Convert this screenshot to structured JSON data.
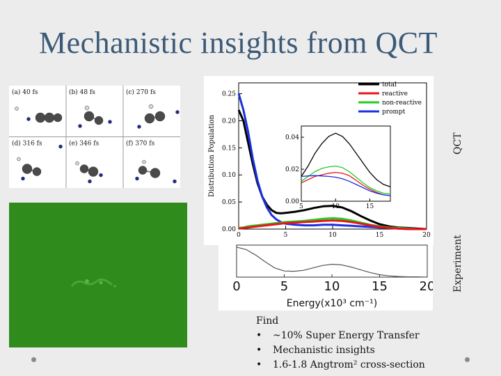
{
  "slide": {
    "title": "Mechanistic insights from QCT",
    "label_qct": "QCT",
    "label_experiment": "Experiment"
  },
  "snapshots": [
    {
      "label": "(a)",
      "time": "40 fs"
    },
    {
      "label": "(b)",
      "time": "48 fs"
    },
    {
      "label": "(c)",
      "time": "270 fs"
    },
    {
      "label": "(d)",
      "time": "316 fs"
    },
    {
      "label": "(e)",
      "time": "346 fs"
    },
    {
      "label": "(f)",
      "time": "370 fs"
    }
  ],
  "findings": {
    "heading": "Find",
    "items": [
      "~10% Super Energy Transfer",
      "Mechanistic insights",
      "1.6-1.8 Angtrom² cross-section"
    ]
  },
  "chart_data": [
    {
      "type": "line",
      "name": "qct-distribution",
      "ylabel": "Distribution Population",
      "xlim": [
        0,
        20
      ],
      "ylim": [
        0,
        0.27
      ],
      "xticks": [
        "0",
        "5",
        "10",
        "15",
        "20"
      ],
      "yticks": [
        "0.00",
        "0.05",
        "0.10",
        "0.15",
        "0.20",
        "0.25"
      ],
      "legend": [
        "total",
        "reactive",
        "non-reactive",
        "prompt"
      ],
      "colors": {
        "total": "#000000",
        "reactive": "#e8141c",
        "non-reactive": "#22cc22",
        "prompt": "#1a2ee0"
      },
      "x": [
        0,
        0.5,
        1,
        1.5,
        2,
        2.5,
        3,
        3.5,
        4,
        4.5,
        5,
        6,
        7,
        8,
        9,
        10,
        11,
        12,
        13,
        14,
        15,
        16,
        17,
        18,
        19,
        20
      ],
      "series": [
        {
          "name": "total",
          "values": [
            0.22,
            0.2,
            0.16,
            0.12,
            0.085,
            0.06,
            0.045,
            0.035,
            0.03,
            0.029,
            0.03,
            0.032,
            0.035,
            0.039,
            0.042,
            0.043,
            0.04,
            0.033,
            0.024,
            0.016,
            0.009,
            0.005,
            0.003,
            0.002,
            0.001,
            0.0
          ]
        },
        {
          "name": "prompt",
          "values": [
            0.25,
            0.22,
            0.18,
            0.13,
            0.09,
            0.06,
            0.04,
            0.026,
            0.018,
            0.013,
            0.01,
            0.008,
            0.007,
            0.007,
            0.008,
            0.008,
            0.007,
            0.006,
            0.005,
            0.004,
            0.003,
            0.002,
            0.001,
            0.001,
            0.0,
            0.0
          ]
        },
        {
          "name": "non-reactive",
          "values": [
            0.002,
            0.003,
            0.005,
            0.006,
            0.007,
            0.008,
            0.009,
            0.01,
            0.011,
            0.012,
            0.013,
            0.014,
            0.015,
            0.017,
            0.019,
            0.02,
            0.019,
            0.016,
            0.012,
            0.008,
            0.005,
            0.003,
            0.002,
            0.001,
            0.0,
            0.0
          ]
        },
        {
          "name": "reactive",
          "values": [
            0.001,
            0.002,
            0.003,
            0.004,
            0.005,
            0.006,
            0.007,
            0.008,
            0.009,
            0.01,
            0.011,
            0.012,
            0.013,
            0.014,
            0.015,
            0.016,
            0.015,
            0.013,
            0.01,
            0.007,
            0.004,
            0.002,
            0.001,
            0.0,
            0.0,
            0.0
          ]
        }
      ]
    },
    {
      "type": "line",
      "name": "qct-inset",
      "xlim": [
        5,
        18
      ],
      "ylim": [
        0,
        0.047
      ],
      "xticks": [
        "5",
        "10",
        "15"
      ],
      "yticks": [
        "0.00",
        "0.02",
        "0.04"
      ],
      "x": [
        5,
        6,
        7,
        8,
        9,
        10,
        11,
        12,
        13,
        14,
        15,
        16,
        17,
        18
      ],
      "series": [
        {
          "name": "total",
          "values": [
            0.0155,
            0.022,
            0.03,
            0.036,
            0.0405,
            0.0425,
            0.0405,
            0.036,
            0.03,
            0.024,
            0.018,
            0.0135,
            0.0105,
            0.009
          ]
        },
        {
          "name": "non-reactive",
          "values": [
            0.0125,
            0.0155,
            0.0185,
            0.0205,
            0.0215,
            0.022,
            0.021,
            0.0185,
            0.015,
            0.0115,
            0.0085,
            0.0065,
            0.005,
            0.0045
          ]
        },
        {
          "name": "reactive",
          "values": [
            0.0115,
            0.0135,
            0.0155,
            0.0165,
            0.0175,
            0.018,
            0.0175,
            0.016,
            0.013,
            0.01,
            0.0075,
            0.0055,
            0.004,
            0.0035
          ]
        },
        {
          "name": "prompt",
          "values": [
            0.0155,
            0.0158,
            0.016,
            0.0158,
            0.0155,
            0.015,
            0.014,
            0.0125,
            0.0105,
            0.0085,
            0.0065,
            0.005,
            0.004,
            0.0035
          ]
        }
      ]
    },
    {
      "type": "line",
      "name": "experiment",
      "xlabel": "Energy(x10³ cm⁻¹)",
      "xlim": [
        0,
        20
      ],
      "ylim": [
        0,
        1
      ],
      "xticks": [
        "0",
        "5",
        "10",
        "15",
        "20"
      ],
      "color": "#555555",
      "x": [
        0,
        1,
        2,
        3,
        4,
        5,
        6,
        7,
        8,
        9,
        10,
        11,
        12,
        13,
        14,
        15,
        16,
        17,
        18,
        19,
        20
      ],
      "values": [
        0.98,
        0.9,
        0.72,
        0.5,
        0.3,
        0.2,
        0.19,
        0.22,
        0.3,
        0.38,
        0.42,
        0.4,
        0.33,
        0.24,
        0.15,
        0.08,
        0.04,
        0.02,
        0.01,
        0.01,
        0.0
      ]
    }
  ]
}
